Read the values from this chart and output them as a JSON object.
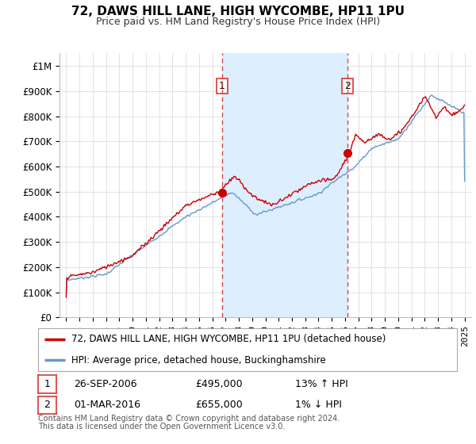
{
  "title": "72, DAWS HILL LANE, HIGH WYCOMBE, HP11 1PU",
  "subtitle": "Price paid vs. HM Land Registry's House Price Index (HPI)",
  "red_label": "72, DAWS HILL LANE, HIGH WYCOMBE, HP11 1PU (detached house)",
  "blue_label": "HPI: Average price, detached house, Buckinghamshire",
  "footnote1": "Contains HM Land Registry data © Crown copyright and database right 2024.",
  "footnote2": "This data is licensed under the Open Government Licence v3.0.",
  "transaction1_date": "26-SEP-2006",
  "transaction1_price": "£495,000",
  "transaction1_hpi": "13% ↑ HPI",
  "transaction2_date": "01-MAR-2016",
  "transaction2_price": "£655,000",
  "transaction2_hpi": "1% ↓ HPI",
  "vline1_x": 2006.75,
  "vline2_x": 2016.17,
  "point1_x": 2006.75,
  "point1_y": 495000,
  "point2_x": 2016.17,
  "point2_y": 655000,
  "ylim_min": 0,
  "ylim_max": 1050000,
  "xlim_min": 1994.5,
  "xlim_max": 2025.5,
  "background_color": "#ffffff",
  "plot_bg_color": "#ffffff",
  "grid_color": "#dddddd",
  "red_color": "#cc0000",
  "blue_color": "#6699cc",
  "blue_fill_color": "#ddeeff",
  "vline_color": "#dd4444",
  "ytick_labels": [
    "£0",
    "£100K",
    "£200K",
    "£300K",
    "£400K",
    "£500K",
    "£600K",
    "£700K",
    "£800K",
    "£900K",
    "£1M"
  ],
  "yticks": [
    0,
    100000,
    200000,
    300000,
    400000,
    500000,
    600000,
    700000,
    800000,
    900000,
    1000000
  ],
  "xticks": [
    1995,
    1996,
    1997,
    1998,
    1999,
    2000,
    2001,
    2002,
    2003,
    2004,
    2005,
    2006,
    2007,
    2008,
    2009,
    2010,
    2011,
    2012,
    2013,
    2014,
    2015,
    2016,
    2017,
    2018,
    2019,
    2020,
    2021,
    2022,
    2023,
    2024,
    2025
  ]
}
